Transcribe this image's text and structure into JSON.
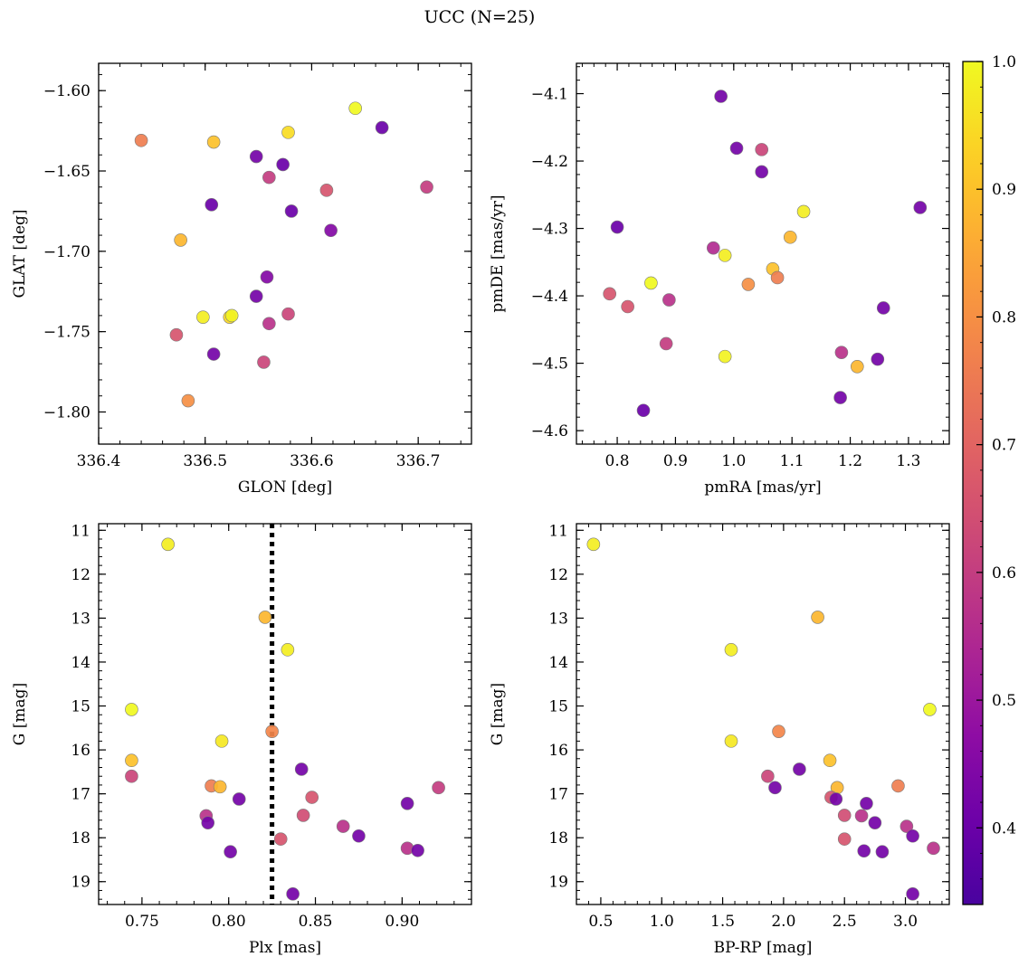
{
  "figure_title": "UCC (N=25)",
  "colorbar": {
    "min": 0.34,
    "max": 1.0,
    "ticks": [
      0.4,
      0.5,
      0.6,
      0.7,
      0.8,
      0.9,
      1.0
    ],
    "tick_labels": [
      "0.4",
      "0.5",
      "0.6",
      "0.7",
      "0.8",
      "0.9",
      "1.0"
    ],
    "colormap": "plasma"
  },
  "chart_data": [
    {
      "type": "scatter",
      "title": "",
      "xlabel": "GLON [deg]",
      "ylabel": "GLAT [deg]",
      "xlim": [
        336.4,
        336.75
      ],
      "ylim": [
        -1.82,
        -1.583
      ],
      "y_inverted": false,
      "xticks": [
        336.4,
        336.5,
        336.6,
        336.7
      ],
      "xtick_labels": [
        "336.4",
        "336.5",
        "336.6",
        "336.7"
      ],
      "yticks": [
        -1.6,
        -1.65,
        -1.7,
        -1.75,
        -1.8
      ],
      "ytick_labels": [
        "−1.60",
        "−1.65",
        "−1.70",
        "−1.75",
        "−1.80"
      ],
      "points": [
        {
          "x": 336.44,
          "y": -1.631,
          "c": 0.76
        },
        {
          "x": 336.508,
          "y": -1.632,
          "c": 0.9
        },
        {
          "x": 336.578,
          "y": -1.626,
          "c": 0.95
        },
        {
          "x": 336.641,
          "y": -1.611,
          "c": 1.0
        },
        {
          "x": 336.666,
          "y": -1.623,
          "c": 0.4
        },
        {
          "x": 336.548,
          "y": -1.641,
          "c": 0.42
        },
        {
          "x": 336.573,
          "y": -1.646,
          "c": 0.4
        },
        {
          "x": 336.56,
          "y": -1.654,
          "c": 0.6
        },
        {
          "x": 336.614,
          "y": -1.662,
          "c": 0.66
        },
        {
          "x": 336.708,
          "y": -1.66,
          "c": 0.6
        },
        {
          "x": 336.506,
          "y": -1.671,
          "c": 0.4
        },
        {
          "x": 336.581,
          "y": -1.675,
          "c": 0.4
        },
        {
          "x": 336.618,
          "y": -1.687,
          "c": 0.45
        },
        {
          "x": 336.477,
          "y": -1.693,
          "c": 0.88
        },
        {
          "x": 336.558,
          "y": -1.716,
          "c": 0.45
        },
        {
          "x": 336.548,
          "y": -1.728,
          "c": 0.42
        },
        {
          "x": 336.578,
          "y": -1.739,
          "c": 0.62
        },
        {
          "x": 336.498,
          "y": -1.741,
          "c": 0.98
        },
        {
          "x": 336.523,
          "y": -1.741,
          "c": 0.94
        },
        {
          "x": 336.525,
          "y": -1.74,
          "c": 0.99
        },
        {
          "x": 336.56,
          "y": -1.745,
          "c": 0.57
        },
        {
          "x": 336.473,
          "y": -1.752,
          "c": 0.66
        },
        {
          "x": 336.508,
          "y": -1.764,
          "c": 0.42
        },
        {
          "x": 336.555,
          "y": -1.769,
          "c": 0.62
        },
        {
          "x": 336.484,
          "y": -1.793,
          "c": 0.8
        }
      ]
    },
    {
      "type": "scatter",
      "title": "",
      "xlabel": "pmRA [mas/yr]",
      "ylabel": "pmDE [mas/yr]",
      "xlim": [
        0.73,
        1.37
      ],
      "ylim": [
        -4.62,
        -4.055
      ],
      "y_inverted": false,
      "xticks": [
        0.8,
        0.9,
        1.0,
        1.1,
        1.2,
        1.3
      ],
      "xtick_labels": [
        "0.8",
        "0.9",
        "1.0",
        "1.1",
        "1.2",
        "1.3"
      ],
      "yticks": [
        -4.1,
        -4.2,
        -4.3,
        -4.4,
        -4.5,
        -4.6
      ],
      "ytick_labels": [
        "−4.1",
        "−4.2",
        "−4.3",
        "−4.4",
        "−4.5",
        "−4.6"
      ],
      "points": [
        {
          "x": 0.978,
          "y": -4.104,
          "c": 0.42
        },
        {
          "x": 1.005,
          "y": -4.181,
          "c": 0.42
        },
        {
          "x": 1.048,
          "y": -4.183,
          "c": 0.62
        },
        {
          "x": 1.048,
          "y": -4.216,
          "c": 0.42
        },
        {
          "x": 1.12,
          "y": -4.275,
          "c": 0.98
        },
        {
          "x": 0.8,
          "y": -4.298,
          "c": 0.4
        },
        {
          "x": 1.32,
          "y": -4.269,
          "c": 0.42
        },
        {
          "x": 1.097,
          "y": -4.313,
          "c": 0.88
        },
        {
          "x": 0.965,
          "y": -4.329,
          "c": 0.55
        },
        {
          "x": 0.985,
          "y": -4.34,
          "c": 0.98
        },
        {
          "x": 1.067,
          "y": -4.36,
          "c": 0.9
        },
        {
          "x": 1.075,
          "y": -4.373,
          "c": 0.76
        },
        {
          "x": 0.858,
          "y": -4.381,
          "c": 1.0
        },
        {
          "x": 1.025,
          "y": -4.383,
          "c": 0.8
        },
        {
          "x": 0.787,
          "y": -4.397,
          "c": 0.66
        },
        {
          "x": 0.818,
          "y": -4.416,
          "c": 0.66
        },
        {
          "x": 0.889,
          "y": -4.406,
          "c": 0.57
        },
        {
          "x": 1.257,
          "y": -4.418,
          "c": 0.42
        },
        {
          "x": 0.884,
          "y": -4.471,
          "c": 0.6
        },
        {
          "x": 1.185,
          "y": -4.484,
          "c": 0.57
        },
        {
          "x": 0.985,
          "y": -4.49,
          "c": 0.99
        },
        {
          "x": 1.247,
          "y": -4.494,
          "c": 0.42
        },
        {
          "x": 1.212,
          "y": -4.505,
          "c": 0.88
        },
        {
          "x": 1.183,
          "y": -4.551,
          "c": 0.42
        },
        {
          "x": 0.845,
          "y": -4.57,
          "c": 0.4
        }
      ]
    },
    {
      "type": "scatter",
      "title": "",
      "xlabel": "Plx [mas]",
      "ylabel": "G [mag]",
      "xlim": [
        0.725,
        0.94
      ],
      "ylim": [
        10.85,
        19.52
      ],
      "y_inverted": true,
      "xticks": [
        0.75,
        0.8,
        0.85,
        0.9
      ],
      "xtick_labels": [
        "0.75",
        "0.80",
        "0.85",
        "0.90"
      ],
      "yticks": [
        11,
        12,
        13,
        14,
        15,
        16,
        17,
        18,
        19
      ],
      "ytick_labels": [
        "11",
        "12",
        "13",
        "14",
        "15",
        "16",
        "17",
        "18",
        "19"
      ],
      "vline": {
        "x": 0.825,
        "style": "dotted"
      },
      "points": [
        {
          "x": 0.765,
          "y": 11.32,
          "c": 0.98
        },
        {
          "x": 0.821,
          "y": 12.98,
          "c": 0.88
        },
        {
          "x": 0.834,
          "y": 13.72,
          "c": 0.98
        },
        {
          "x": 0.744,
          "y": 15.08,
          "c": 1.0
        },
        {
          "x": 0.825,
          "y": 15.58,
          "c": 0.78
        },
        {
          "x": 0.796,
          "y": 15.8,
          "c": 0.97
        },
        {
          "x": 0.744,
          "y": 16.24,
          "c": 0.9
        },
        {
          "x": 0.744,
          "y": 16.6,
          "c": 0.62
        },
        {
          "x": 0.842,
          "y": 16.44,
          "c": 0.42
        },
        {
          "x": 0.79,
          "y": 16.82,
          "c": 0.76
        },
        {
          "x": 0.795,
          "y": 16.84,
          "c": 0.88
        },
        {
          "x": 0.921,
          "y": 16.86,
          "c": 0.6
        },
        {
          "x": 0.848,
          "y": 17.08,
          "c": 0.66
        },
        {
          "x": 0.806,
          "y": 17.12,
          "c": 0.42
        },
        {
          "x": 0.903,
          "y": 17.22,
          "c": 0.42
        },
        {
          "x": 0.787,
          "y": 17.5,
          "c": 0.57
        },
        {
          "x": 0.843,
          "y": 17.49,
          "c": 0.64
        },
        {
          "x": 0.788,
          "y": 17.66,
          "c": 0.42
        },
        {
          "x": 0.866,
          "y": 17.74,
          "c": 0.57
        },
        {
          "x": 0.875,
          "y": 17.96,
          "c": 0.42
        },
        {
          "x": 0.83,
          "y": 18.03,
          "c": 0.66
        },
        {
          "x": 0.903,
          "y": 18.24,
          "c": 0.57
        },
        {
          "x": 0.909,
          "y": 18.29,
          "c": 0.42
        },
        {
          "x": 0.801,
          "y": 18.32,
          "c": 0.42
        },
        {
          "x": 0.837,
          "y": 19.28,
          "c": 0.42
        }
      ]
    },
    {
      "type": "scatter",
      "title": "",
      "xlabel": "BP-RP [mag]",
      "ylabel": "G [mag]",
      "xlim": [
        0.3,
        3.36
      ],
      "ylim": [
        10.85,
        19.52
      ],
      "y_inverted": true,
      "xticks": [
        0.5,
        1.0,
        1.5,
        2.0,
        2.5,
        3.0
      ],
      "xtick_labels": [
        "0.5",
        "1.0",
        "1.5",
        "2.0",
        "2.5",
        "3.0"
      ],
      "yticks": [
        11,
        12,
        13,
        14,
        15,
        16,
        17,
        18,
        19
      ],
      "ytick_labels": [
        "11",
        "12",
        "13",
        "14",
        "15",
        "16",
        "17",
        "18",
        "19"
      ],
      "points": [
        {
          "x": 0.44,
          "y": 11.32,
          "c": 0.98
        },
        {
          "x": 2.28,
          "y": 12.98,
          "c": 0.88
        },
        {
          "x": 1.57,
          "y": 13.72,
          "c": 0.98
        },
        {
          "x": 3.2,
          "y": 15.08,
          "c": 1.0
        },
        {
          "x": 1.96,
          "y": 15.58,
          "c": 0.78
        },
        {
          "x": 1.57,
          "y": 15.8,
          "c": 0.97
        },
        {
          "x": 2.38,
          "y": 16.24,
          "c": 0.9
        },
        {
          "x": 1.87,
          "y": 16.6,
          "c": 0.62
        },
        {
          "x": 2.13,
          "y": 16.44,
          "c": 0.42
        },
        {
          "x": 2.94,
          "y": 16.82,
          "c": 0.76
        },
        {
          "x": 2.44,
          "y": 16.86,
          "c": 0.88
        },
        {
          "x": 1.93,
          "y": 16.86,
          "c": 0.42
        },
        {
          "x": 2.39,
          "y": 17.08,
          "c": 0.66
        },
        {
          "x": 2.43,
          "y": 17.12,
          "c": 0.42
        },
        {
          "x": 2.68,
          "y": 17.22,
          "c": 0.42
        },
        {
          "x": 2.5,
          "y": 17.49,
          "c": 0.64
        },
        {
          "x": 2.64,
          "y": 17.5,
          "c": 0.57
        },
        {
          "x": 2.75,
          "y": 17.66,
          "c": 0.42
        },
        {
          "x": 3.01,
          "y": 17.74,
          "c": 0.57
        },
        {
          "x": 3.06,
          "y": 17.96,
          "c": 0.42
        },
        {
          "x": 2.5,
          "y": 18.03,
          "c": 0.66
        },
        {
          "x": 3.23,
          "y": 18.24,
          "c": 0.57
        },
        {
          "x": 2.66,
          "y": 18.3,
          "c": 0.42
        },
        {
          "x": 2.81,
          "y": 18.32,
          "c": 0.42
        },
        {
          "x": 3.06,
          "y": 19.28,
          "c": 0.42
        }
      ]
    }
  ]
}
